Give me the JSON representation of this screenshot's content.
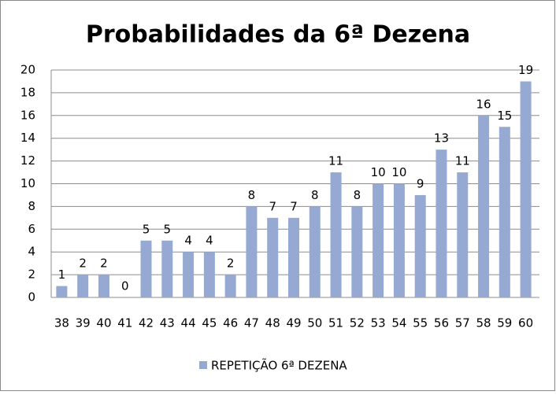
{
  "chart_data": {
    "type": "bar",
    "title": "Probabilidades da 6ª Dezena",
    "categories": [
      "38",
      "39",
      "40",
      "41",
      "42",
      "43",
      "44",
      "45",
      "46",
      "47",
      "48",
      "49",
      "50",
      "51",
      "52",
      "53",
      "54",
      "55",
      "56",
      "57",
      "58",
      "59",
      "60"
    ],
    "series": [
      {
        "name": "REPETIÇÃO 6ª DEZENA",
        "color": "#95a9d3",
        "values": [
          1,
          2,
          2,
          0,
          5,
          5,
          4,
          4,
          2,
          8,
          7,
          7,
          8,
          11,
          8,
          10,
          10,
          9,
          13,
          11,
          16,
          15,
          19
        ]
      }
    ],
    "ylim": [
      0,
      20
    ],
    "yticks": [
      0,
      2,
      4,
      6,
      8,
      10,
      12,
      14,
      16,
      18,
      20
    ],
    "grid": true,
    "legend": "bottom"
  }
}
